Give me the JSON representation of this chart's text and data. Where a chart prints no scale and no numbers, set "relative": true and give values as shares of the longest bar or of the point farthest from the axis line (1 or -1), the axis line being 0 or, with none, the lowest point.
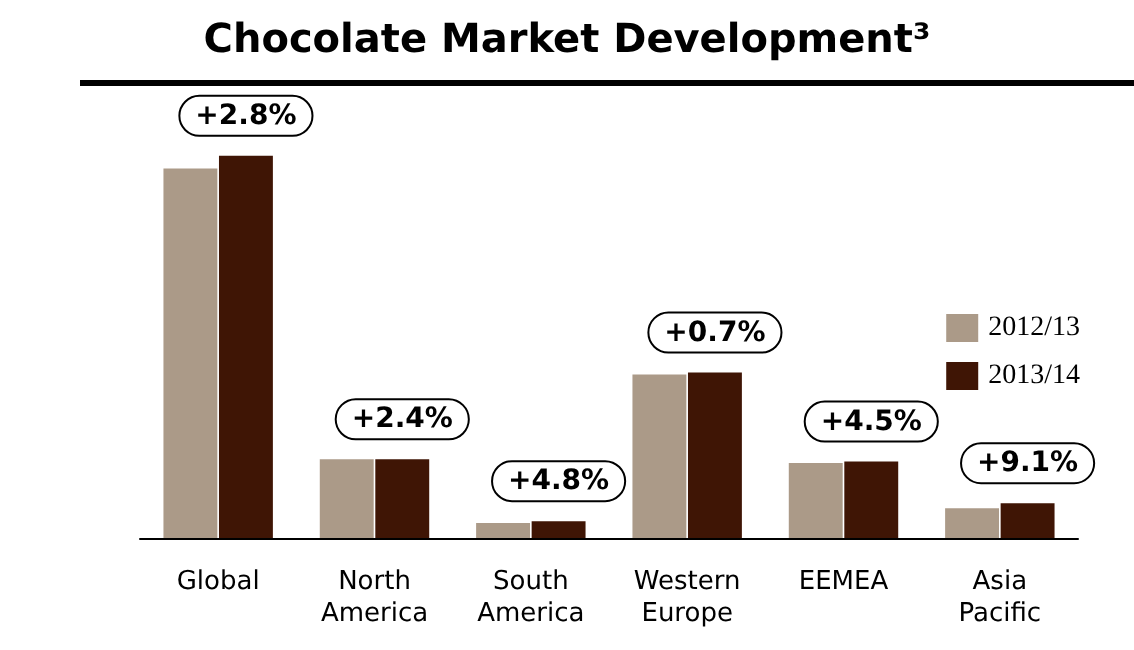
{
  "chart_data": {
    "type": "bar",
    "title": "Chocolate Market Development³",
    "relative": true,
    "categories": [
      "Global",
      "North\nAmerica",
      "South\nAmerica",
      "Western\nEurope",
      "EEMEA",
      "Asia\nPacific"
    ],
    "series": [
      {
        "name": "2012/13",
        "color": "#ab9a88",
        "values": [
          0.967,
          0.206,
          0.039,
          0.428,
          0.196,
          0.078
        ]
      },
      {
        "name": "2013/14",
        "color": "#3f1505",
        "values": [
          1,
          0.206,
          0.044,
          0.433,
          0.2,
          0.091
        ]
      }
    ],
    "annotations": [
      {
        "text": "+2.8%",
        "x": "Global",
        "y": 1
      },
      {
        "text": "+2.4%",
        "x": "North\nAmerica",
        "y": 0.206
      },
      {
        "text": "+4.8%",
        "x": "South\nAmerica",
        "y": 0.044
      },
      {
        "text": "+0.7%",
        "x": "Western\nEurope",
        "y": 0.433
      },
      {
        "text": "+4.5%",
        "x": "EEMEA",
        "y": 0.2
      },
      {
        "text": "+9.1%",
        "x": "Asia\nPacific",
        "y": 0.091
      }
    ],
    "legend": "right"
  }
}
